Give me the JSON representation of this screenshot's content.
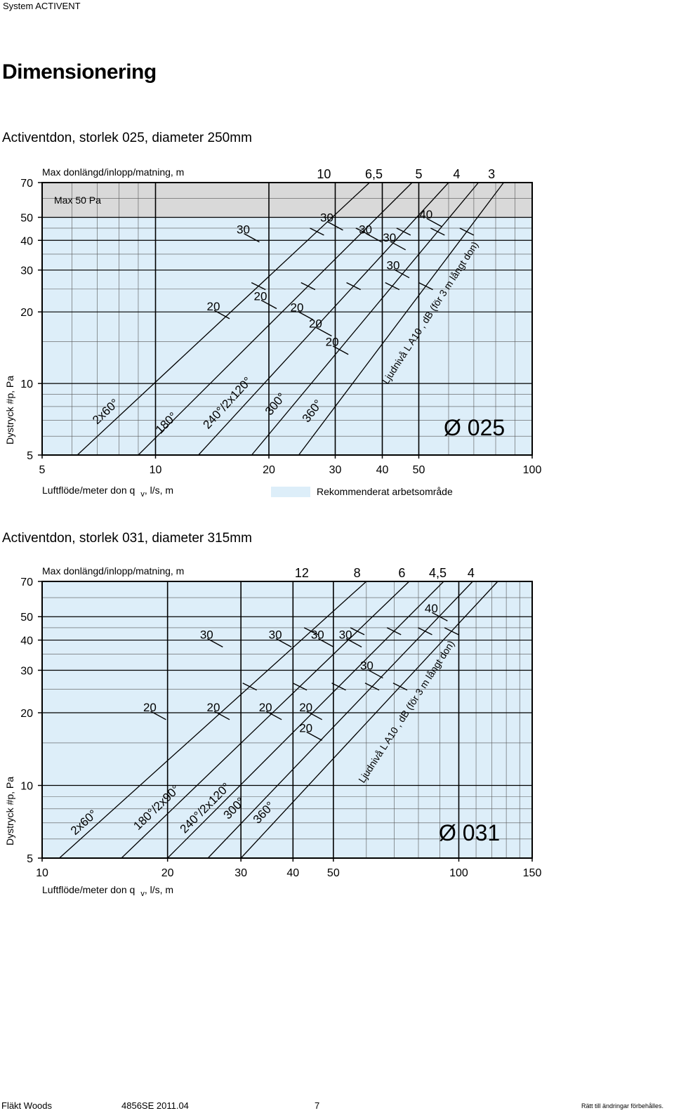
{
  "header": {
    "system": "System ACTIVENT",
    "title": "Dimensionering"
  },
  "sections": [
    {
      "title": "Activentdon, storlek 025, diameter 250mm"
    },
    {
      "title": "Activentdon, storlek 031, diameter 315mm"
    }
  ],
  "legend": {
    "recommended": "Rekommenderat arbetsområde"
  },
  "footer": {
    "company": "Fläkt Woods",
    "doc": "4856SE 2011.04",
    "page": "7",
    "rights": "Rätt till ändringar förbehålles."
  },
  "colors": {
    "work_area": "#ddeef9",
    "max_band": "#d9d9d9",
    "line": "#000000"
  },
  "chart_data": [
    {
      "type": "line",
      "x_scale": "log",
      "y_scale": "log",
      "xlim": [
        5,
        100
      ],
      "ylim": [
        5,
        70
      ],
      "xticks": [
        "5",
        "10",
        "20",
        "30",
        "40",
        "50",
        "100"
      ],
      "xtick_values": [
        5,
        10,
        20,
        30,
        40,
        50,
        100
      ],
      "yticks": [
        "5",
        "10",
        "20",
        "30",
        "40",
        "50",
        "70"
      ],
      "ytick_values": [
        5,
        10,
        20,
        30,
        40,
        50,
        70
      ],
      "xlabel": "Luftflöde/meter don q",
      "xlabel_sub": "v",
      "xlabel_unit": ", l/s, m",
      "ylabel": "Dystryck #p, Pa",
      "top_label": "Max donlängd/inlopp/matning, m",
      "max_label": "Max 50 Pa",
      "max_pressure": 50,
      "diameter_label": "Ø 025",
      "noise_axis_label": "Ljudnivå L A10 , dB (för 3 m långt don)",
      "length_labels": [
        {
          "text": "10",
          "x": 28
        },
        {
          "text": "6,5",
          "x": 38
        },
        {
          "text": "5",
          "x": 50
        },
        {
          "text": "4",
          "x": 63
        },
        {
          "text": "3",
          "x": 78
        }
      ],
      "series": [
        {
          "name": "2x60°",
          "points": [
            [
              6.2,
              5
            ],
            [
              37,
              70
            ]
          ],
          "label_at": [
            7.0,
            6.7
          ]
        },
        {
          "name": "180°",
          "points": [
            [
              9.0,
              5
            ],
            [
              48,
              70
            ]
          ],
          "label_at": [
            10.3,
            6.1
          ]
        },
        {
          "name": "240°/2x120°",
          "points": [
            [
              13.0,
              5
            ],
            [
              60,
              70
            ]
          ],
          "label_at": [
            13.8,
            6.4
          ]
        },
        {
          "name": "300°",
          "points": [
            [
              18.0,
              5
            ],
            [
              72,
              70
            ]
          ],
          "label_at": [
            20.2,
            7.3
          ]
        },
        {
          "name": "360°",
          "points": [
            [
              24.0,
              5
            ],
            [
              84,
              70
            ]
          ],
          "label_at": [
            25.4,
            6.8
          ]
        }
      ],
      "noise_marks": [
        {
          "x": 15.0,
          "y": 19.5,
          "text": "20"
        },
        {
          "x": 20.0,
          "y": 21.5,
          "text": "20"
        },
        {
          "x": 25.0,
          "y": 19.3,
          "text": "20"
        },
        {
          "x": 28.0,
          "y": 16.5,
          "text": "20"
        },
        {
          "x": 31.0,
          "y": 13.8,
          "text": "20"
        },
        {
          "x": 18.0,
          "y": 41.0,
          "text": "30"
        },
        {
          "x": 30.0,
          "y": 46.0,
          "text": "30"
        },
        {
          "x": 38.0,
          "y": 41.0,
          "text": "30"
        },
        {
          "x": 44.0,
          "y": 38.0,
          "text": "30"
        },
        {
          "x": 45.0,
          "y": 29.0,
          "text": "30"
        },
        {
          "x": 55.0,
          "y": 47.5,
          "text": "40"
        }
      ]
    },
    {
      "type": "line",
      "x_scale": "log",
      "y_scale": "log",
      "xlim": [
        10,
        150
      ],
      "ylim": [
        5,
        70
      ],
      "xticks": [
        "10",
        "20",
        "30",
        "40",
        "50",
        "100",
        "150"
      ],
      "xtick_values": [
        10,
        20,
        30,
        40,
        50,
        100,
        150
      ],
      "yticks": [
        "5",
        "10",
        "20",
        "30",
        "40",
        "50",
        "70"
      ],
      "ytick_values": [
        5,
        10,
        20,
        30,
        40,
        50,
        70
      ],
      "xlabel": "Luftflöde/meter don q",
      "xlabel_sub": "v",
      "xlabel_unit": ", l/s, m",
      "ylabel": "Dystryck #p, Pa",
      "top_label": "Max donlängd/inlopp/matning, m",
      "diameter_label": "Ø 031",
      "noise_axis_label": "Ljudnivå L A10 , dB (för 3 m långt don)",
      "length_labels": [
        {
          "text": "12",
          "x": 42
        },
        {
          "text": "8",
          "x": 57
        },
        {
          "text": "6",
          "x": 73
        },
        {
          "text": "4,5",
          "x": 89
        },
        {
          "text": "4",
          "x": 107
        }
      ],
      "series": [
        {
          "name": "2x60°",
          "points": [
            [
              11.0,
              5
            ],
            [
              60,
              70
            ]
          ],
          "label_at": [
            12.0,
            6.2
          ]
        },
        {
          "name": "180°/2x90°",
          "points": [
            [
              15.5,
              5
            ],
            [
              76,
              70
            ]
          ],
          "label_at": [
            17.0,
            6.5
          ]
        },
        {
          "name": "240°/2x120°",
          "points": [
            [
              20.0,
              5
            ],
            [
              92,
              70
            ]
          ],
          "label_at": [
            22.0,
            6.3
          ]
        },
        {
          "name": "300°",
          "points": [
            [
              25.0,
              5
            ],
            [
              108,
              70
            ]
          ],
          "label_at": [
            28.0,
            7.2
          ]
        },
        {
          "name": "360°",
          "points": [
            [
              30.0,
              5
            ],
            [
              124,
              70
            ]
          ],
          "label_at": [
            33.0,
            6.9
          ]
        }
      ],
      "noise_marks": [
        {
          "x": 19.0,
          "y": 19.5,
          "text": "20"
        },
        {
          "x": 27.0,
          "y": 19.5,
          "text": "20"
        },
        {
          "x": 36.0,
          "y": 19.5,
          "text": "20"
        },
        {
          "x": 45.0,
          "y": 19.5,
          "text": "20"
        },
        {
          "x": 45.0,
          "y": 16.0,
          "text": "20"
        },
        {
          "x": 26.0,
          "y": 39.0,
          "text": "30"
        },
        {
          "x": 38.0,
          "y": 39.0,
          "text": "30"
        },
        {
          "x": 48.0,
          "y": 39.0,
          "text": "30"
        },
        {
          "x": 56.0,
          "y": 39.0,
          "text": "30"
        },
        {
          "x": 63.0,
          "y": 29.0,
          "text": "30"
        },
        {
          "x": 90.0,
          "y": 50.0,
          "text": "40"
        }
      ]
    }
  ]
}
